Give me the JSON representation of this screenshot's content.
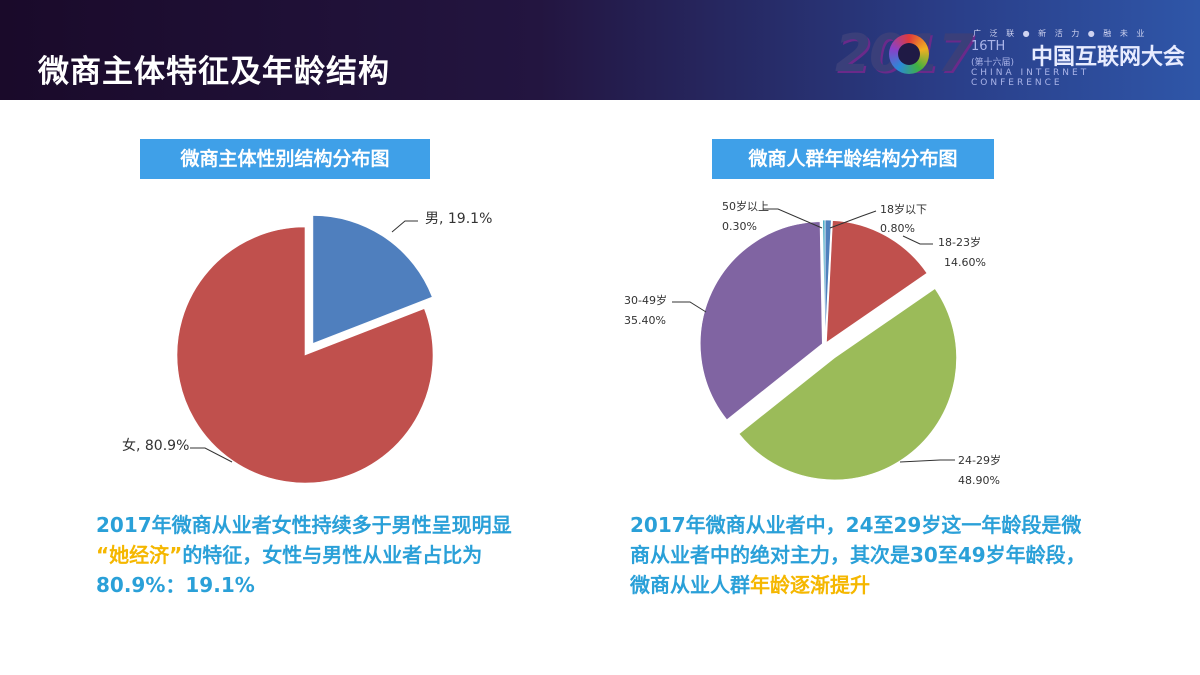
{
  "header": {
    "title": "微商主体特征及年龄结构",
    "logo": {
      "year": "2017",
      "top_line": "广 泛 联 ● 新 活 力 ● 融 未 业",
      "edition": "16TH",
      "session": "(第十六届)",
      "name_cn": "中国互联网大会",
      "name_en": "CHINA INTERNET CONFERENCE"
    }
  },
  "chart_data": [
    {
      "type": "pie",
      "title": "微商主体性别结构分布图",
      "slices": [
        {
          "label": "男",
          "value": 19.1,
          "display": "男, 19.1%",
          "color": "#4f7fbe",
          "exploded": true
        },
        {
          "label": "女",
          "value": 80.9,
          "display": "女, 80.9%",
          "color": "#c0504d",
          "exploded": false
        }
      ]
    },
    {
      "type": "pie",
      "title": "微商人群年龄结构分布图",
      "slices": [
        {
          "label": "18岁以下",
          "value": 0.8,
          "pct": "0.80%",
          "color": "#4f81bd",
          "exploded": false
        },
        {
          "label": "18-23岁",
          "value": 14.6,
          "pct": "14.60%",
          "color": "#c0504d",
          "exploded": false
        },
        {
          "label": "24-29岁",
          "value": 48.9,
          "pct": "48.90%",
          "color": "#9bbb59",
          "exploded": true
        },
        {
          "label": "30-49岁",
          "value": 35.4,
          "pct": "35.40%",
          "color": "#8064a2",
          "exploded": false
        },
        {
          "label": "50岁以上",
          "value": 0.3,
          "pct": "0.30%",
          "color": "#4bacc6",
          "exploded": false
        }
      ]
    }
  ],
  "captions": {
    "left": {
      "line1": "2017年微商从业者女性持续多于男性呈现明显",
      "line2_q_open": "“",
      "line2_hl": "她经济",
      "line2_q_close": "”",
      "line2_rest": "的特征，女性与男性从业者占比为",
      "line3": "80.9%：19.1%"
    },
    "right": {
      "line1": "2017年微商从业者中，24至29岁这一年龄段是微",
      "line2": "商从业者中的绝对主力，其次是30至49岁年龄段，",
      "line3_pre": "微商从业人群",
      "line3_hl": "年龄逐渐提升"
    }
  }
}
